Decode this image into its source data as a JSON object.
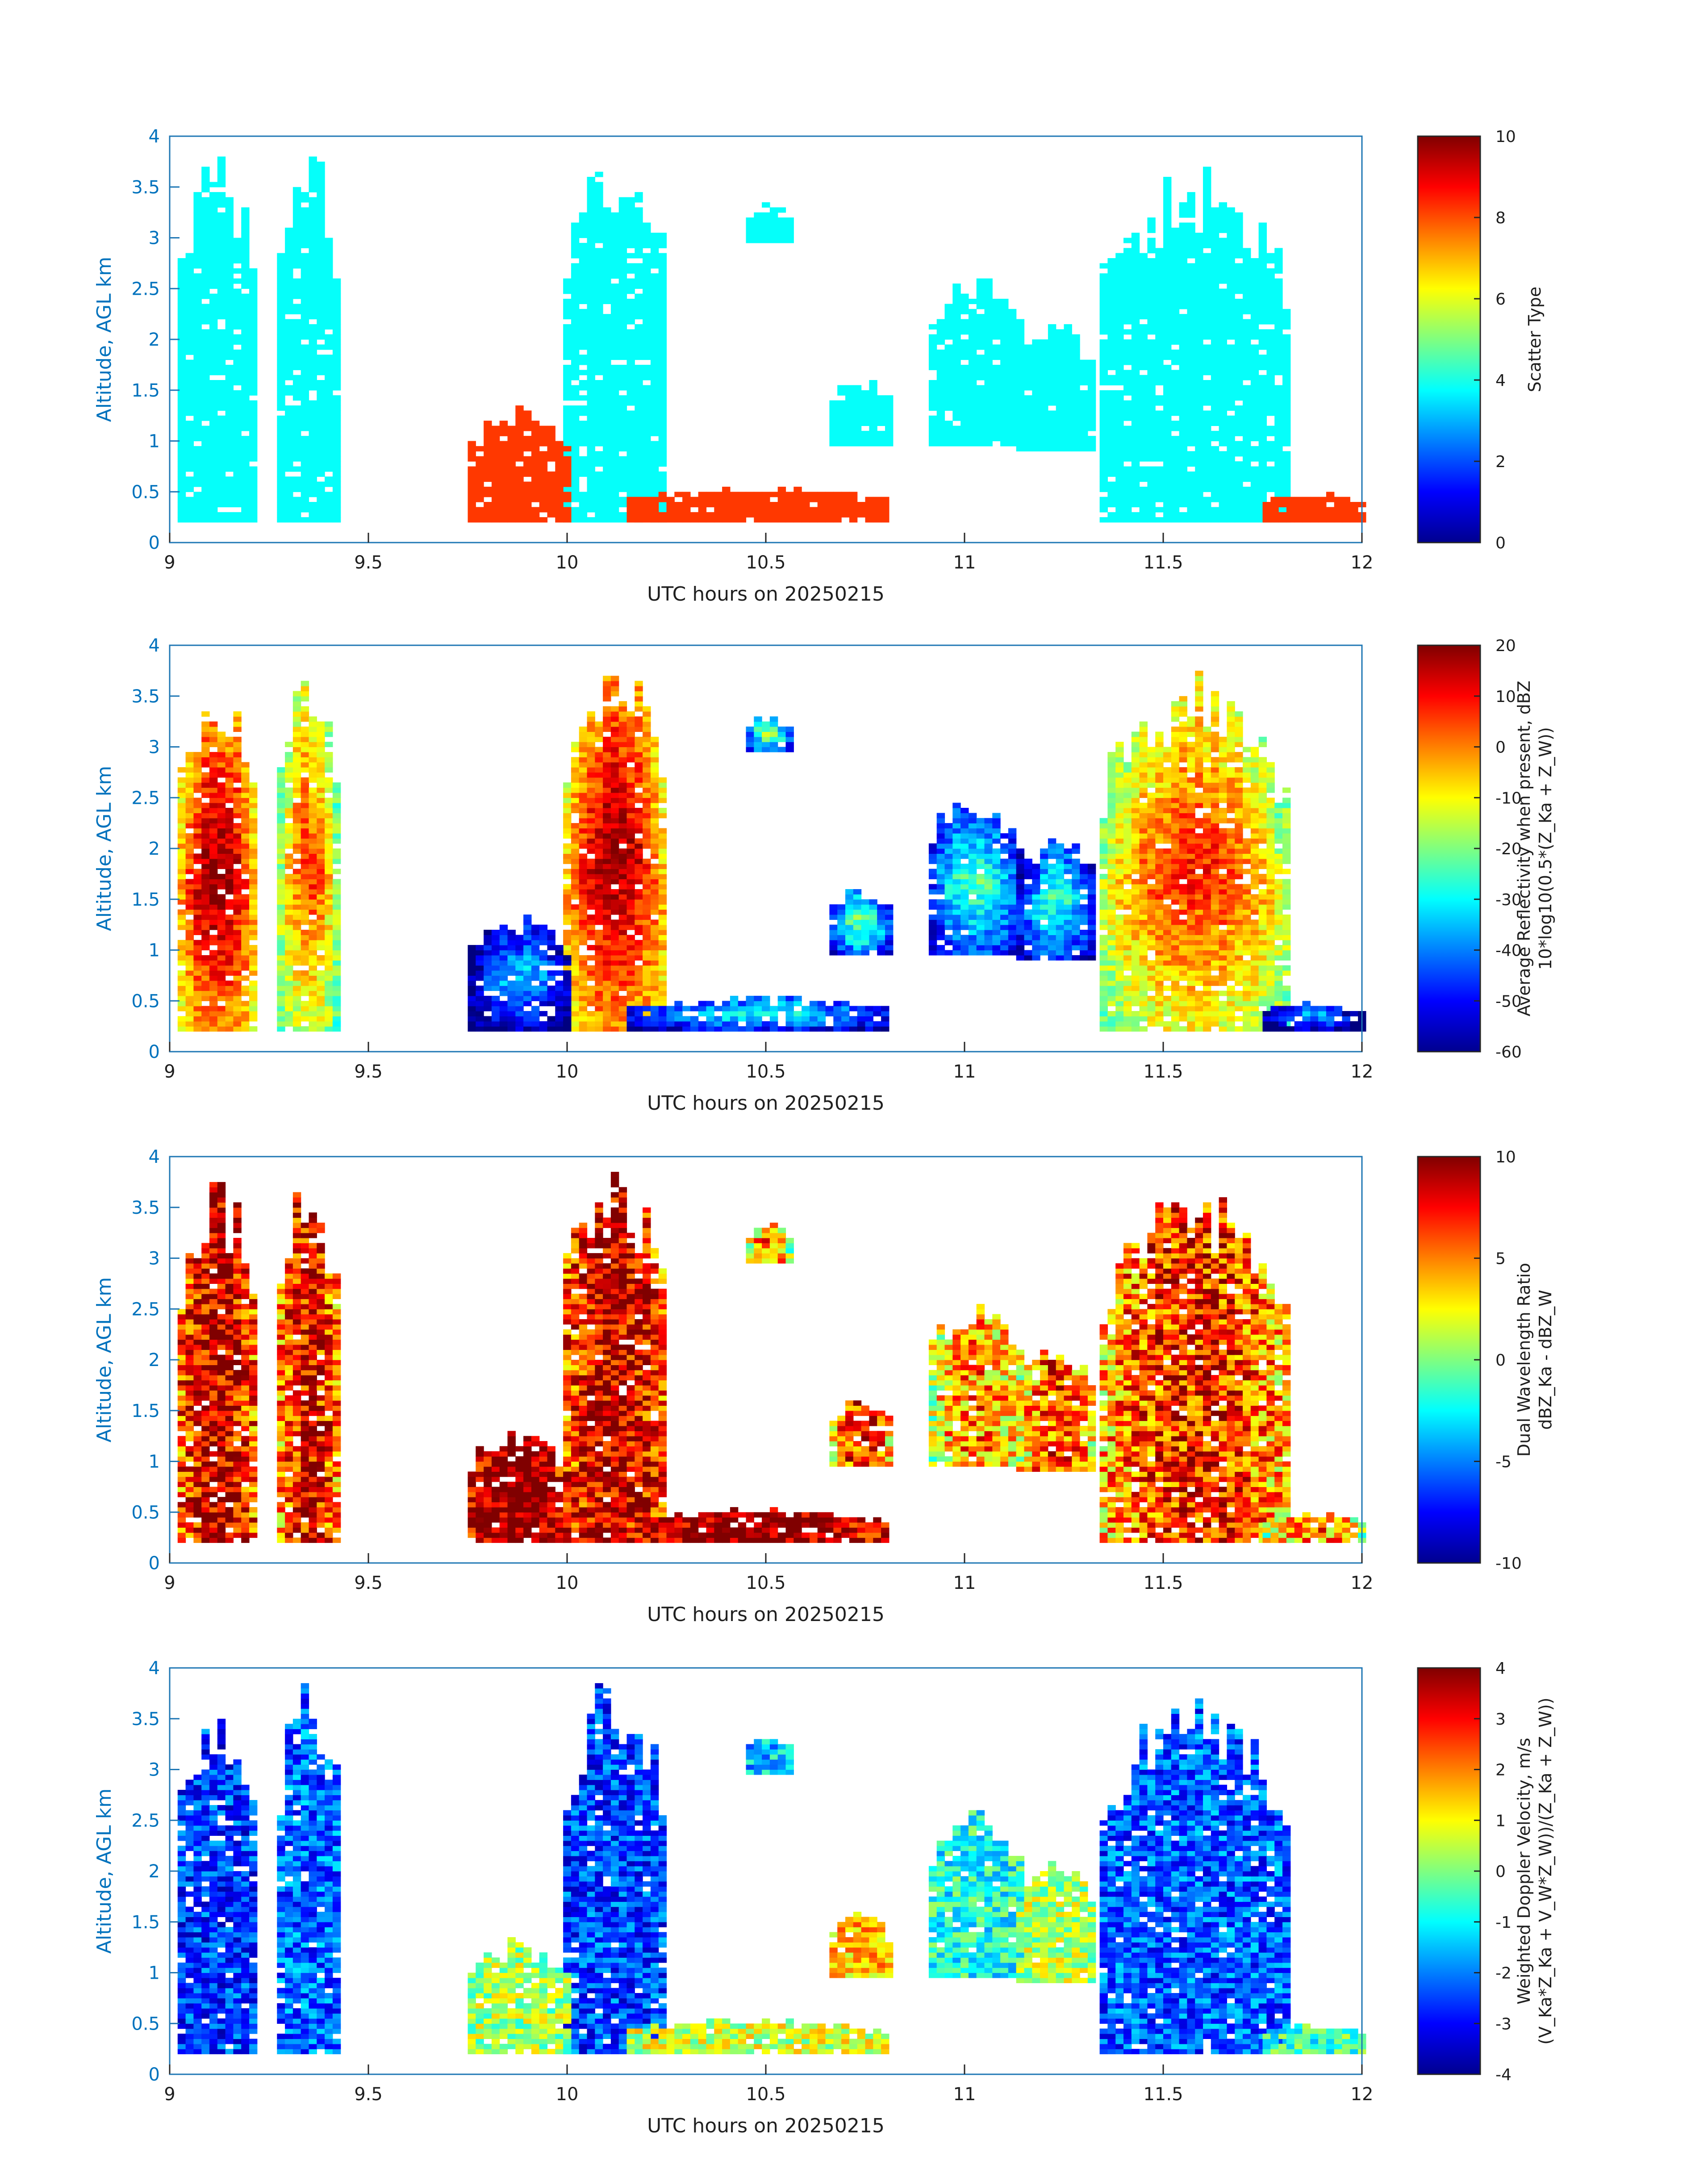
{
  "chart_data": [
    {
      "type": "heatmap",
      "xlabel": "UTC hours on 20250215",
      "ylabel": "Altitude, AGL km",
      "xlim": [
        9,
        12
      ],
      "ylim": [
        0,
        4
      ],
      "xticks": [
        "9",
        "9.5",
        "10",
        "10.5",
        "11",
        "11.5",
        "12"
      ],
      "yticks": [
        "0",
        "0.5",
        "1",
        "1.5",
        "2",
        "2.5",
        "3",
        "3.5",
        "4"
      ],
      "colorbar": {
        "label_lines": [
          "Scatter Type"
        ],
        "clim": [
          0,
          10
        ],
        "ticks": [
          "0",
          "2",
          "4",
          "6",
          "8",
          "10"
        ],
        "colormap": "jet"
      },
      "field": "scatter"
    },
    {
      "type": "heatmap",
      "xlabel": "UTC hours on 20250215",
      "ylabel": "Altitude, AGL km",
      "xlim": [
        9,
        12
      ],
      "ylim": [
        0,
        4
      ],
      "xticks": [
        "9",
        "9.5",
        "10",
        "10.5",
        "11",
        "11.5",
        "12"
      ],
      "yticks": [
        "0",
        "0.5",
        "1",
        "1.5",
        "2",
        "2.5",
        "3",
        "3.5",
        "4"
      ],
      "colorbar": {
        "label_lines": [
          "Average Reflectivity when present, dBZ",
          "10*log10(0.5*(Z_Ka + Z_W))"
        ],
        "clim": [
          -60,
          20
        ],
        "ticks": [
          "-60",
          "-50",
          "-40",
          "-30",
          "-20",
          "-10",
          "0",
          "10",
          "20"
        ],
        "colormap": "jet"
      },
      "field": "reflectivity"
    },
    {
      "type": "heatmap",
      "xlabel": "UTC hours on 20250215",
      "ylabel": "Altitude, AGL km",
      "xlim": [
        9,
        12
      ],
      "ylim": [
        0,
        4
      ],
      "xticks": [
        "9",
        "9.5",
        "10",
        "10.5",
        "11",
        "11.5",
        "12"
      ],
      "yticks": [
        "0",
        "0.5",
        "1",
        "1.5",
        "2",
        "2.5",
        "3",
        "3.5",
        "4"
      ],
      "colorbar": {
        "label_lines": [
          "Dual Wavelength Ratio",
          "dBZ_Ka - dBZ_W"
        ],
        "clim": [
          -10,
          10
        ],
        "ticks": [
          "-10",
          "-5",
          "0",
          "5",
          "10"
        ],
        "colormap": "jet"
      },
      "field": "dwr"
    },
    {
      "type": "heatmap",
      "xlabel": "UTC hours on 20250215",
      "ylabel": "Altitude, AGL km",
      "xlim": [
        9,
        12
      ],
      "ylim": [
        0,
        4
      ],
      "xticks": [
        "9",
        "9.5",
        "10",
        "10.5",
        "11",
        "11.5",
        "12"
      ],
      "yticks": [
        "0",
        "0.5",
        "1",
        "1.5",
        "2",
        "2.5",
        "3",
        "3.5",
        "4"
      ],
      "colorbar": {
        "label_lines": [
          "Weighted Doppler Velocity, m/s",
          "(V_Ka*Z_Ka + V_W*Z_W))/(Z_Ka + Z_W))"
        ],
        "clim": [
          -4,
          4
        ],
        "ticks": [
          "-4",
          "-3",
          "-2",
          "-1",
          "0",
          "1",
          "2",
          "3",
          "4"
        ],
        "colormap": "jet"
      },
      "field": "velocity"
    }
  ],
  "echo_regions": [
    {
      "x": [
        9.02,
        9.22
      ],
      "ytop": 3.9,
      "ybottom": 0.2,
      "scatter": 3.8,
      "refl": 5,
      "dwr": 7,
      "vel": -2.6
    },
    {
      "x": [
        9.27,
        9.43
      ],
      "ytop": 4.0,
      "ybottom": 0.2,
      "scatter": 3.8,
      "refl": -8,
      "dwr": 6,
      "vel": -2.2
    },
    {
      "x": [
        9.99,
        10.24
      ],
      "ytop": 4.0,
      "ybottom": 0.2,
      "scatter": 3.8,
      "refl": 4,
      "dwr": 7,
      "vel": -2.5
    },
    {
      "x": [
        10.45,
        10.57
      ],
      "ytop": 3.35,
      "ybottom": 2.95,
      "scatter": 3.8,
      "refl": -33,
      "dwr": 3,
      "vel": -1.4
    },
    {
      "x": [
        10.66,
        10.82
      ],
      "ytop": 1.65,
      "ybottom": 0.95,
      "scatter": 3.8,
      "refl": -35,
      "dwr": 5,
      "vel": 1.5
    },
    {
      "x": [
        10.91,
        11.15
      ],
      "ytop": 2.65,
      "ybottom": 0.95,
      "scatter": 3.8,
      "refl": -38,
      "dwr": 3,
      "vel": -0.8
    },
    {
      "x": [
        11.13,
        11.34
      ],
      "ytop": 2.2,
      "ybottom": 0.9,
      "scatter": 3.8,
      "refl": -40,
      "dwr": 4,
      "vel": 0.4
    },
    {
      "x": [
        11.34,
        11.82
      ],
      "ytop": 3.75,
      "ybottom": 0.2,
      "scatter": 3.8,
      "refl": -6,
      "dwr": 5,
      "vel": -2.3
    },
    {
      "x": [
        9.75,
        10.0
      ],
      "ytop": 1.35,
      "ybottom": 0.2,
      "scatter": 8.2,
      "refl": -48,
      "dwr": 9,
      "vel": 0.3
    },
    {
      "x": [
        10.15,
        10.82
      ],
      "ytop": 0.55,
      "ybottom": 0.2,
      "scatter": 8.2,
      "refl": -42,
      "dwr": 9,
      "vel": 0.6
    },
    {
      "x": [
        11.75,
        12.0
      ],
      "ytop": 0.5,
      "ybottom": 0.2,
      "scatter": 8.2,
      "refl": -50,
      "dwr": 3,
      "vel": -0.5
    }
  ]
}
